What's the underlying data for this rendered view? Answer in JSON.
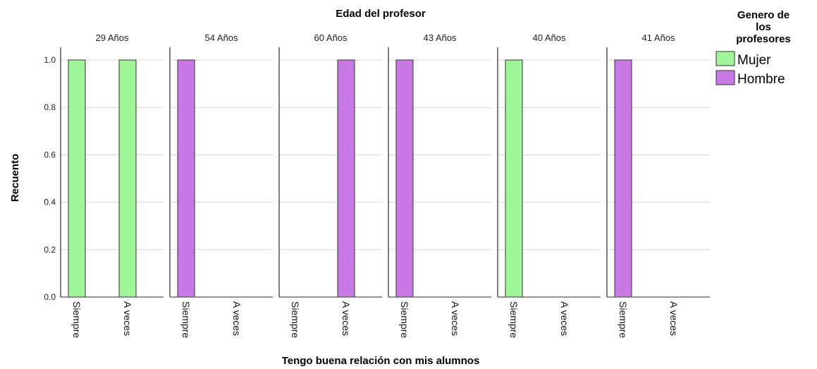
{
  "chart_data": {
    "type": "bar",
    "facet_title": "Edad del profesor",
    "xlabel": "Tengo buena relación con mis alumnos",
    "ylabel": "Recuento",
    "ylim": [
      0,
      1.0
    ],
    "yticks": [
      "0.0",
      "0.2",
      "0.4",
      "0.6",
      "0.8",
      "1.0"
    ],
    "grid": true,
    "legend": {
      "title_lines": [
        "Genero de",
        "los",
        "profesores"
      ],
      "placement": "top-right",
      "entries": [
        {
          "name": "Mujer",
          "color": "#a0f598"
        },
        {
          "name": "Hombre",
          "color": "#c879e6"
        }
      ]
    },
    "categories": [
      "Siempre",
      "A veces"
    ],
    "panels": [
      {
        "label": "29 Años",
        "bars": [
          {
            "value": 1,
            "series": "Mujer"
          },
          {
            "value": 1,
            "series": "Mujer"
          }
        ]
      },
      {
        "label": "54 Años",
        "bars": [
          {
            "value": 1,
            "series": "Hombre"
          },
          {
            "value": 0,
            "series": null
          }
        ]
      },
      {
        "label": "60 Años",
        "bars": [
          {
            "value": 0,
            "series": null
          },
          {
            "value": 1,
            "series": "Hombre"
          }
        ]
      },
      {
        "label": "43 Años",
        "bars": [
          {
            "value": 1,
            "series": "Hombre"
          },
          {
            "value": 0,
            "series": null
          }
        ]
      },
      {
        "label": "40 Años",
        "bars": [
          {
            "value": 1,
            "series": "Mujer"
          },
          {
            "value": 0,
            "series": null
          }
        ]
      },
      {
        "label": "41 Años",
        "bars": [
          {
            "value": 1,
            "series": "Hombre"
          },
          {
            "value": 0,
            "series": null
          }
        ]
      }
    ]
  }
}
